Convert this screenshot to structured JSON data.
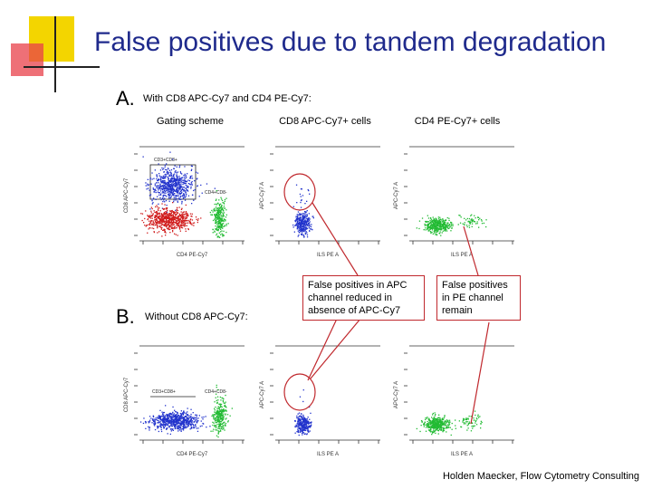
{
  "slide": {
    "title": "False positives due to tandem degradation",
    "section_a": {
      "letter": "A.",
      "description": "With CD8 APC-Cy7 and CD4 PE-Cy7:"
    },
    "section_b": {
      "letter": "B.",
      "description": "Without CD8 APC-Cy7:"
    },
    "columns": [
      "Gating scheme",
      "CD8 APC-Cy7+ cells",
      "CD4 PE-Cy7+ cells"
    ],
    "plot_labels": {
      "gate_cd8": "CD3+CD8+",
      "gate_cd4": "CD4+CD8-",
      "x_axis_gating": "CD4 PE-Cy7",
      "y_axis_gating": "CD8 APC-Cy7",
      "x_axis_pop": "ILS PE A",
      "y_axis_pop": "APC-Cy7 A"
    },
    "callouts": [
      "False positives in APC channel reduced in absence of APC-Cy7",
      "False positives in PE channel remain"
    ],
    "credit": "Holden Maecker, Flow Cytometry Consulting",
    "colors": {
      "title": "#1f2a8c",
      "accent_yellow": "#f3d500",
      "accent_red": "#e8404a",
      "callout_red": "#c0282d",
      "cd8_blue": "#2233cc",
      "cd4_green": "#22bb33",
      "dn_red": "#d01c1c"
    }
  }
}
